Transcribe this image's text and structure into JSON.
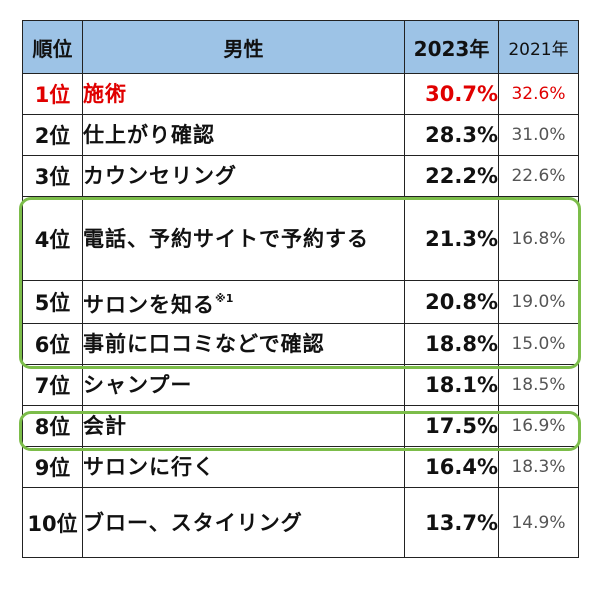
{
  "header": {
    "rank": "順位",
    "item": "男性",
    "y2023": "2023年",
    "y2021": "2021年"
  },
  "rows": [
    {
      "rank": "1位",
      "item": "施術",
      "v2023": "30.7%",
      "v2021": "32.6%"
    },
    {
      "rank": "2位",
      "item": "仕上がり確認",
      "v2023": "28.3%",
      "v2021": "31.0%"
    },
    {
      "rank": "3位",
      "item": "カウンセリング",
      "v2023": "22.2%",
      "v2021": "22.6%"
    },
    {
      "rank": "4位",
      "item": "電話、予約サイトで予約する",
      "v2023": "21.3%",
      "v2021": "16.8%"
    },
    {
      "rank": "5位",
      "item": "サロンを知る",
      "note": "※1",
      "v2023": "20.8%",
      "v2021": "19.0%"
    },
    {
      "rank": "6位",
      "item": "事前に口コミなどで確認",
      "v2023": "18.8%",
      "v2021": "15.0%"
    },
    {
      "rank": "7位",
      "item": "シャンプー",
      "v2023": "18.1%",
      "v2021": "18.5%"
    },
    {
      "rank": "8位",
      "item": "会計",
      "v2023": "17.5%",
      "v2021": "16.9%"
    },
    {
      "rank": "9位",
      "item": "サロンに行く",
      "v2023": "16.4%",
      "v2021": "18.3%"
    },
    {
      "rank": "10位",
      "item": "ブロー、スタイリング",
      "v2023": "13.7%",
      "v2021": "14.9%"
    }
  ],
  "colors": {
    "header_bg": "#9dc3e6",
    "top_rank": "#e00000",
    "highlight": "#7cbd4a"
  }
}
